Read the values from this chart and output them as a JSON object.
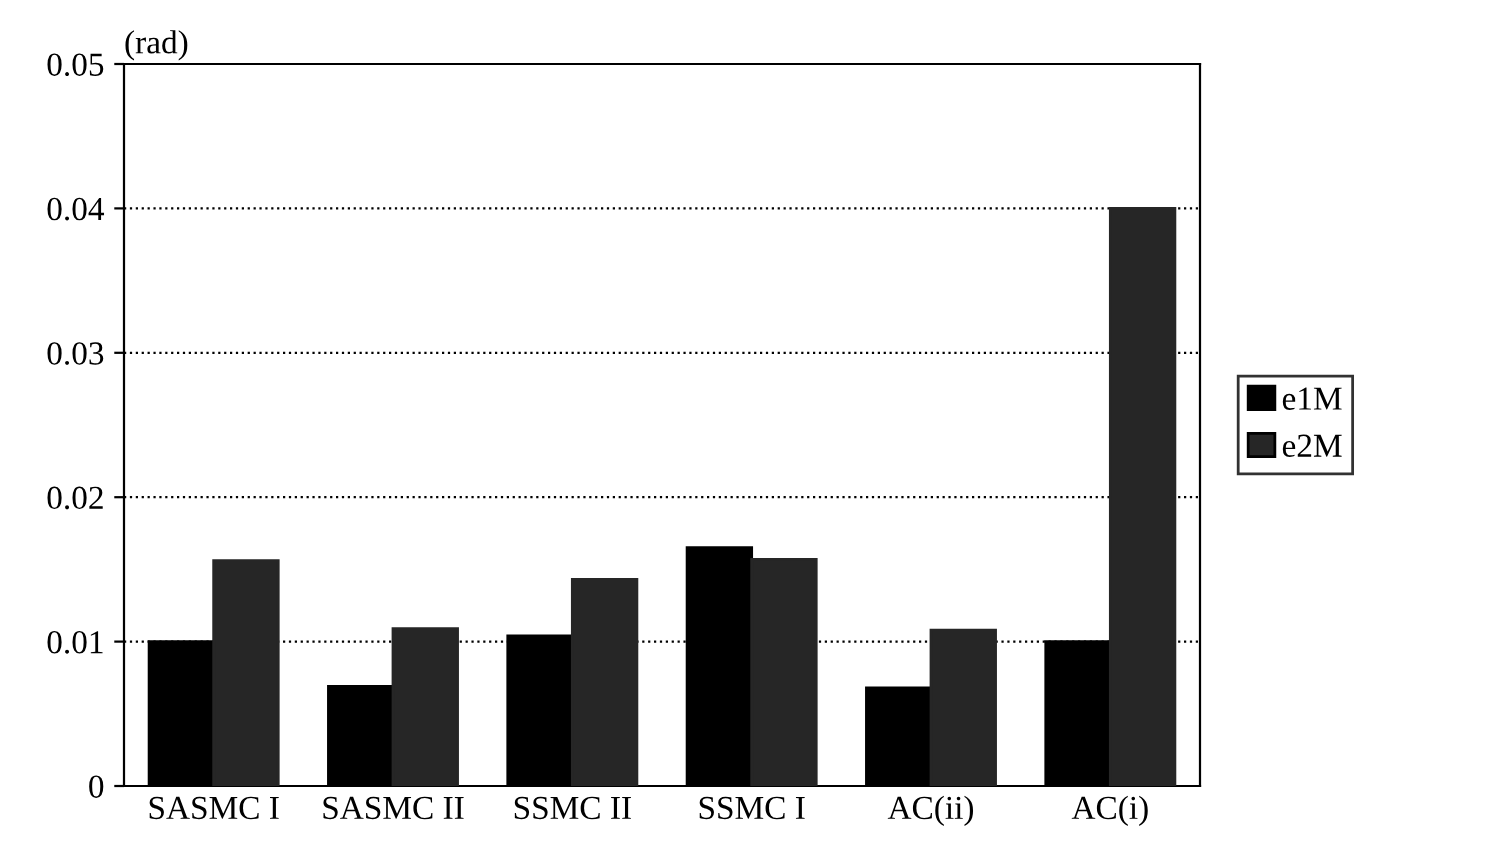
{
  "chart_data": {
    "type": "bar",
    "ylabel": "(rad)",
    "categories": [
      "SASMC I",
      "SASMC II",
      "SSMC II",
      "SSMC I",
      "AC(ii)",
      "AC(i)"
    ],
    "series": [
      {
        "name": "e1M",
        "color": "#000000",
        "values": [
          0.01,
          0.0069,
          0.0104,
          0.0165,
          0.0068,
          0.01
        ]
      },
      {
        "name": "e2M",
        "color": "#262626",
        "values": [
          0.0156,
          0.0109,
          0.0143,
          0.0157,
          0.0108,
          0.04
        ]
      }
    ],
    "ylim": [
      0,
      0.05
    ],
    "yticks": [
      0,
      0.01,
      0.02,
      0.03,
      0.04,
      0.05
    ],
    "grid": "y",
    "line_style": "dotted",
    "legend": "right"
  }
}
